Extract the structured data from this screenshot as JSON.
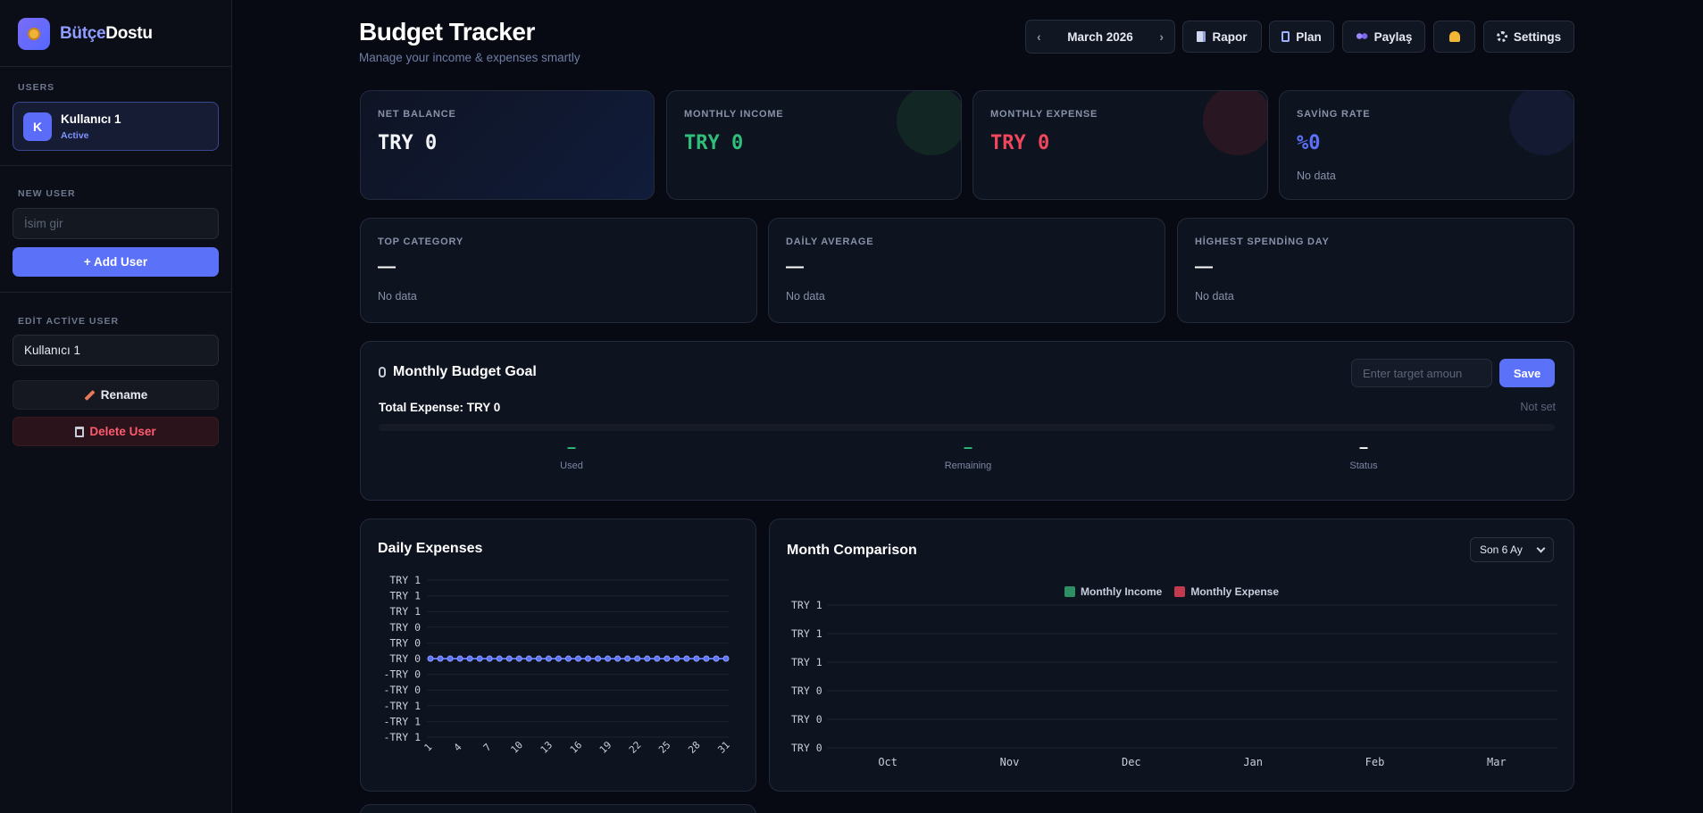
{
  "brand": {
    "part1": "Bütçe",
    "part2": "Dostu"
  },
  "sidebar": {
    "users_label": "USERS",
    "active_user": {
      "initial": "K",
      "name": "Kullanıcı 1",
      "status": "Active"
    },
    "new_user_label": "NEW USER",
    "new_user_placeholder": "İsim gir",
    "add_user_label": "+ Add User",
    "edit_label": "EDİT ACTİVE USER",
    "edit_value": "Kullanıcı 1",
    "rename_label": "Rename",
    "delete_label": "Delete User"
  },
  "header": {
    "title": "Budget Tracker",
    "subtitle": "Manage your income & expenses smartly",
    "month": "March 2026",
    "prev": "‹",
    "next": "›",
    "rapor": "Rapor",
    "plan": "Plan",
    "paylas": "Paylaş",
    "settings": "Settings"
  },
  "summary": [
    {
      "label": "NET BALANCE",
      "value": "TRY 0",
      "note": "",
      "color": "#f2f4f8"
    },
    {
      "label": "MONTHLY INCOME",
      "value": "TRY 0",
      "note": "",
      "color": "#2fbf7a"
    },
    {
      "label": "MONTHLY EXPENSE",
      "value": "TRY 0",
      "note": "",
      "color": "#f0475c"
    },
    {
      "label": "SAVİNG RATE",
      "value": "%0",
      "note": "No data",
      "color": "#5b72f8"
    }
  ],
  "stats": [
    {
      "label": "TOP CATEGORY",
      "value": "—",
      "note": "No data"
    },
    {
      "label": "DAİLY AVERAGE",
      "value": "—",
      "note": "No data"
    },
    {
      "label": "HİGHEST SPENDİNG DAY",
      "value": "—",
      "note": "No data"
    }
  ],
  "goal": {
    "title": "Monthly Budget Goal",
    "placeholder": "Enter target amoun",
    "save": "Save",
    "total": "Total Expense: TRY 0",
    "status_text": "Not set",
    "used_value": "–",
    "used_label": "Used",
    "remaining_value": "–",
    "remaining_label": "Remaining",
    "status_value": "–",
    "status_label": "Status"
  },
  "daily_chart_title": "Daily Expenses",
  "comparison_chart_title": "Month Comparison",
  "comparison_select": "Son 6 Ay",
  "chart_data": [
    {
      "type": "line",
      "title": "Daily Expenses",
      "x": [
        1,
        2,
        3,
        4,
        5,
        6,
        7,
        8,
        9,
        10,
        11,
        12,
        13,
        14,
        15,
        16,
        17,
        18,
        19,
        20,
        21,
        22,
        23,
        24,
        25,
        26,
        27,
        28,
        29,
        30,
        31
      ],
      "x_tick_labels": [
        "1",
        "4",
        "7",
        "10",
        "13",
        "16",
        "19",
        "22",
        "25",
        "28",
        "31"
      ],
      "y_tick_labels": [
        "TRY 1",
        "TRY 1",
        "TRY 1",
        "TRY 0",
        "TRY 0",
        "TRY 0",
        "-TRY 0",
        "-TRY 0",
        "-TRY 1",
        "-TRY 1",
        "-TRY 1"
      ],
      "series": [
        {
          "values": [
            0,
            0,
            0,
            0,
            0,
            0,
            0,
            0,
            0,
            0,
            0,
            0,
            0,
            0,
            0,
            0,
            0,
            0,
            0,
            0,
            0,
            0,
            0,
            0,
            0,
            0,
            0,
            0,
            0,
            0,
            0
          ],
          "color": "#5b72f8"
        }
      ],
      "ylim": [
        -1,
        1
      ]
    },
    {
      "type": "bar",
      "title": "Month Comparison",
      "categories": [
        "Oct",
        "Nov",
        "Dec",
        "Jan",
        "Feb",
        "Mar"
      ],
      "y_tick_labels": [
        "TRY 1",
        "TRY 1",
        "TRY 1",
        "TRY 0",
        "TRY 0",
        "TRY 0"
      ],
      "series": [
        {
          "name": "Monthly Income",
          "values": [
            0,
            0,
            0,
            0,
            0,
            0
          ],
          "color": "#2f8f64"
        },
        {
          "name": "Monthly Expense",
          "values": [
            0,
            0,
            0,
            0,
            0,
            0
          ],
          "color": "#c23a4d"
        }
      ],
      "ylim": [
        0,
        1
      ],
      "legend": "top"
    }
  ]
}
